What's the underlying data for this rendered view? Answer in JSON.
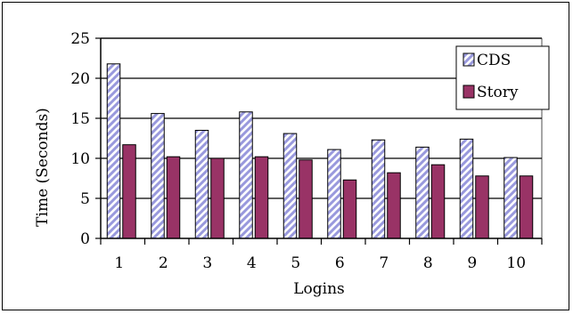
{
  "chart_data": {
    "type": "bar",
    "title": "",
    "xlabel": "Logins",
    "ylabel": "Time  (Seconds)",
    "categories": [
      "1",
      "2",
      "3",
      "4",
      "5",
      "6",
      "7",
      "8",
      "9",
      "10"
    ],
    "ylim": [
      0,
      25
    ],
    "yticks": [
      "0",
      "5",
      "10",
      "15",
      "20",
      "25"
    ],
    "grid": "horizontal",
    "legend_position": "top-right",
    "series": [
      {
        "name": "CDS",
        "values": [
          21.8,
          15.6,
          13.5,
          15.8,
          13.1,
          11.1,
          12.3,
          11.4,
          12.4,
          10.1
        ],
        "color": "#9999dd",
        "pattern": "diagonal-hatch"
      },
      {
        "name": "Story",
        "values": [
          11.7,
          10.2,
          10.0,
          10.2,
          9.8,
          7.3,
          8.2,
          9.2,
          7.8,
          7.8
        ],
        "color": "#993366",
        "pattern": "solid"
      }
    ]
  }
}
